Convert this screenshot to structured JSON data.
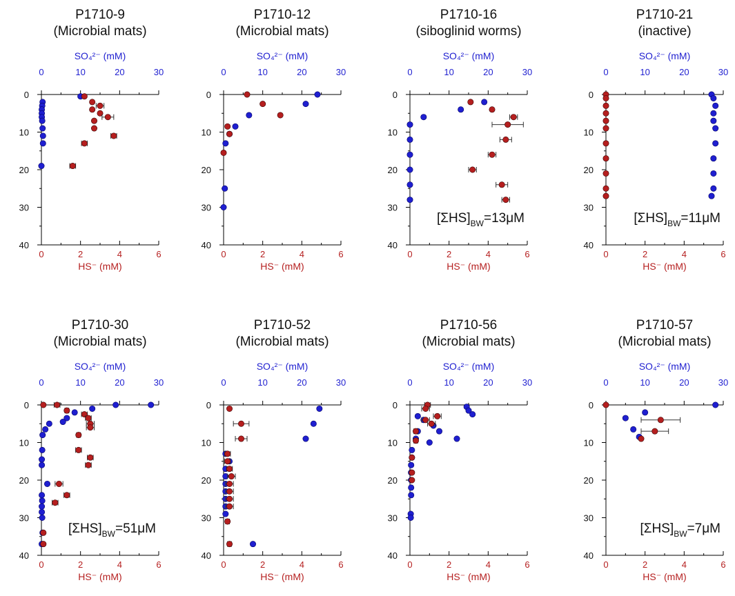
{
  "colors": {
    "sulfate": "#1f1fd0",
    "sulfide": "#b51f1f",
    "axis": "#000000",
    "text": "#111111"
  },
  "axis_labels": {
    "sulfate": "SO₄²⁻ (mM)",
    "sulfide": "HS⁻ (mM)"
  },
  "chart_data": [
    {
      "type": "scatter",
      "id": "P1710-9",
      "title": "P1710-9",
      "subtitle": "(Microbial mats)",
      "xlabel_top": "SO₄²⁻ (mM)",
      "xlabel_bottom": "HS⁻ (mM)",
      "xlim_top": [
        0,
        30
      ],
      "xticks_top": [
        0,
        10,
        20,
        30
      ],
      "xlim_bottom": [
        0,
        6
      ],
      "xticks_bottom": [
        0,
        2,
        4,
        6
      ],
      "ylim": [
        0,
        40
      ],
      "yticks": [
        0,
        10,
        20,
        30,
        40
      ],
      "y_inverted": true,
      "annotation": "",
      "sulfate": [
        [
          10,
          0.5
        ],
        [
          0.3,
          2
        ],
        [
          0.2,
          3
        ],
        [
          0.1,
          4
        ],
        [
          0.1,
          5
        ],
        [
          0.1,
          6
        ],
        [
          0.2,
          7
        ],
        [
          0.3,
          9
        ],
        [
          0.4,
          11
        ],
        [
          0.4,
          13
        ],
        [
          0,
          19
        ]
      ],
      "sulfide": [
        [
          2.2,
          0.5
        ],
        [
          2.6,
          2
        ],
        [
          3.0,
          3
        ],
        [
          2.6,
          4
        ],
        [
          3.0,
          5
        ],
        [
          3.4,
          6
        ],
        [
          2.7,
          7
        ],
        [
          2.7,
          9
        ],
        [
          3.7,
          11
        ],
        [
          2.2,
          13
        ],
        [
          1.6,
          19
        ]
      ],
      "sulfide_err": [
        0,
        0,
        0.2,
        0,
        0,
        0.3,
        0,
        0,
        0.15,
        0.15,
        0.15
      ]
    },
    {
      "type": "scatter",
      "id": "P1710-12",
      "title": "P1710-12",
      "subtitle": "(Microbial mats)",
      "xlabel_top": "SO₄²⁻ (mM)",
      "xlabel_bottom": "HS⁻ (mM)",
      "xlim_top": [
        0,
        30
      ],
      "xticks_top": [
        0,
        10,
        20,
        30
      ],
      "xlim_bottom": [
        0,
        6
      ],
      "xticks_bottom": [
        0,
        2,
        4,
        6
      ],
      "ylim": [
        0,
        40
      ],
      "yticks": [
        0,
        10,
        20,
        30,
        40
      ],
      "y_inverted": true,
      "annotation": "",
      "sulfate": [
        [
          24,
          0
        ],
        [
          21,
          2.5
        ],
        [
          6.5,
          5.5
        ],
        [
          3,
          8.5
        ],
        [
          1.5,
          10.5
        ],
        [
          0.5,
          13
        ],
        [
          0.3,
          25
        ],
        [
          0,
          30
        ]
      ],
      "sulfide": [
        [
          1.2,
          0
        ],
        [
          2.0,
          2.5
        ],
        [
          2.9,
          5.5
        ],
        [
          0.2,
          8.5
        ],
        [
          0.3,
          10.5
        ],
        [
          0,
          15.5
        ]
      ],
      "sulfide_err": [
        0,
        0,
        0,
        0,
        0,
        0
      ]
    },
    {
      "type": "scatter",
      "id": "P1710-16",
      "title": "P1710-16",
      "subtitle": "(siboglinid worms)",
      "xlabel_top": "SO₄²⁻ (mM)",
      "xlabel_bottom": "HS⁻ (mM)",
      "xlim_top": [
        0,
        30
      ],
      "xticks_top": [
        0,
        10,
        20,
        30
      ],
      "xlim_bottom": [
        0,
        6
      ],
      "xticks_bottom": [
        0,
        2,
        4,
        6
      ],
      "ylim": [
        0,
        40
      ],
      "yticks": [
        0,
        10,
        20,
        30,
        40
      ],
      "y_inverted": true,
      "annotation": "[ΣHS]_BW=13μM",
      "sulfate": [
        [
          19,
          2
        ],
        [
          13,
          4
        ],
        [
          3.5,
          6
        ],
        [
          0,
          8
        ],
        [
          0,
          12
        ],
        [
          0,
          16
        ],
        [
          0,
          20
        ],
        [
          0,
          24
        ],
        [
          0,
          28
        ]
      ],
      "sulfide": [
        [
          3.1,
          2
        ],
        [
          4.2,
          4
        ],
        [
          5.3,
          6
        ],
        [
          5.0,
          8
        ],
        [
          4.9,
          12
        ],
        [
          4.2,
          16
        ],
        [
          3.2,
          20
        ],
        [
          4.7,
          24
        ],
        [
          4.9,
          28
        ]
      ],
      "sulfide_err": [
        0,
        0,
        0.2,
        0.8,
        0.3,
        0.2,
        0.2,
        0.3,
        0.2
      ]
    },
    {
      "type": "scatter",
      "id": "P1710-21",
      "title": "P1710-21",
      "subtitle": "(inactive)",
      "xlabel_top": "SO₄²⁻ (mM)",
      "xlabel_bottom": "HS⁻ (mM)",
      "xlim_top": [
        0,
        30
      ],
      "xticks_top": [
        0,
        10,
        20,
        30
      ],
      "xlim_bottom": [
        0,
        6
      ],
      "xticks_bottom": [
        0,
        2,
        4,
        6
      ],
      "ylim": [
        0,
        40
      ],
      "yticks": [
        0,
        10,
        20,
        30,
        40
      ],
      "y_inverted": true,
      "annotation": "[ΣHS]_BW=11μM",
      "sulfate": [
        [
          27,
          0
        ],
        [
          27.5,
          1
        ],
        [
          28,
          3
        ],
        [
          27.5,
          5
        ],
        [
          27.5,
          7
        ],
        [
          28,
          9
        ],
        [
          28,
          13
        ],
        [
          27.5,
          17
        ],
        [
          27.5,
          21
        ],
        [
          27.5,
          25
        ],
        [
          27,
          27
        ]
      ],
      "sulfide": [
        [
          0,
          0
        ],
        [
          0,
          1
        ],
        [
          0,
          3
        ],
        [
          0,
          5
        ],
        [
          0,
          7
        ],
        [
          0,
          9
        ],
        [
          0,
          13
        ],
        [
          0,
          17
        ],
        [
          0,
          21
        ],
        [
          0,
          25
        ],
        [
          0,
          27
        ]
      ],
      "sulfide_err": [
        0,
        0,
        0,
        0,
        0,
        0,
        0,
        0,
        0,
        0,
        0
      ]
    },
    {
      "type": "scatter",
      "id": "P1710-30",
      "title": "P1710-30",
      "subtitle": "(Microbial mats)",
      "xlabel_top": "SO₄²⁻ (mM)",
      "xlabel_bottom": "HS⁻ (mM)",
      "xlim_top": [
        0,
        30
      ],
      "xticks_top": [
        0,
        10,
        20,
        30
      ],
      "xlim_bottom": [
        0,
        6
      ],
      "xticks_bottom": [
        0,
        2,
        4,
        6
      ],
      "ylim": [
        0,
        40
      ],
      "yticks": [
        0,
        10,
        20,
        30,
        40
      ],
      "y_inverted": true,
      "annotation": "[ΣHS]_BW=51μM",
      "sulfate": [
        [
          28,
          0
        ],
        [
          19,
          0
        ],
        [
          13,
          1
        ],
        [
          8.5,
          2
        ],
        [
          6.5,
          3.5
        ],
        [
          5.5,
          4.5
        ],
        [
          2,
          5
        ],
        [
          1,
          6.5
        ],
        [
          0.3,
          8
        ],
        [
          0.2,
          12
        ],
        [
          0.1,
          14.5
        ],
        [
          0.1,
          16
        ],
        [
          1.5,
          21
        ],
        [
          0.1,
          24
        ],
        [
          0.2,
          25.5
        ],
        [
          0.1,
          27
        ],
        [
          0.1,
          28.5
        ],
        [
          0.2,
          30
        ],
        [
          0.3,
          34
        ],
        [
          0.1,
          37
        ]
      ],
      "sulfide": [
        [
          0.1,
          0
        ],
        [
          0.8,
          0
        ],
        [
          1.3,
          1.5
        ],
        [
          2.2,
          2.5
        ],
        [
          2.4,
          3.5
        ],
        [
          2.5,
          5
        ],
        [
          2.5,
          6
        ],
        [
          1.9,
          8
        ],
        [
          1.9,
          12
        ],
        [
          2.5,
          14
        ],
        [
          2.4,
          16
        ],
        [
          0.9,
          21
        ],
        [
          1.3,
          24
        ],
        [
          0.7,
          26
        ],
        [
          0.1,
          34
        ],
        [
          0.1,
          37
        ]
      ],
      "sulfide_err": [
        0,
        0.15,
        0.1,
        0.15,
        0.15,
        0.2,
        0.2,
        0.1,
        0.15,
        0.15,
        0.15,
        0.2,
        0.15,
        0.15,
        0,
        0
      ]
    },
    {
      "type": "scatter",
      "id": "P1710-52",
      "title": "P1710-52",
      "subtitle": "(Microbial mats)",
      "xlabel_top": "SO₄²⁻ (mM)",
      "xlabel_bottom": "HS⁻ (mM)",
      "xlim_top": [
        0,
        30
      ],
      "xticks_top": [
        0,
        10,
        20,
        30
      ],
      "xlim_bottom": [
        0,
        6
      ],
      "xticks_bottom": [
        0,
        2,
        4,
        6
      ],
      "ylim": [
        0,
        40
      ],
      "yticks": [
        0,
        10,
        20,
        30,
        40
      ],
      "y_inverted": true,
      "annotation": "",
      "sulfate": [
        [
          24.5,
          1
        ],
        [
          23,
          5
        ],
        [
          21,
          9
        ],
        [
          0.5,
          13
        ],
        [
          1.5,
          15
        ],
        [
          0.5,
          17
        ],
        [
          0.5,
          19
        ],
        [
          0.5,
          21
        ],
        [
          0.5,
          23
        ],
        [
          0.5,
          25
        ],
        [
          0.5,
          27
        ],
        [
          0.5,
          29
        ],
        [
          7.5,
          37
        ]
      ],
      "sulfide": [
        [
          0.3,
          1
        ],
        [
          0.9,
          5
        ],
        [
          0.9,
          9
        ],
        [
          0.2,
          13
        ],
        [
          0.2,
          15
        ],
        [
          0.3,
          17
        ],
        [
          0.4,
          19
        ],
        [
          0.3,
          21
        ],
        [
          0.3,
          23
        ],
        [
          0.3,
          25
        ],
        [
          0.3,
          27
        ],
        [
          0.2,
          31
        ],
        [
          0.3,
          37
        ]
      ],
      "sulfide_err": [
        0,
        0.4,
        0.3,
        0.15,
        0.15,
        0.15,
        0.2,
        0.2,
        0.2,
        0.2,
        0.2,
        0.1,
        0.1
      ]
    },
    {
      "type": "scatter",
      "id": "P1710-56",
      "title": "P1710-56",
      "subtitle": "(Microbial mats)",
      "xlabel_top": "SO₄²⁻ (mM)",
      "xlabel_bottom": "HS⁻ (mM)",
      "xlim_top": [
        0,
        30
      ],
      "xticks_top": [
        0,
        10,
        20,
        30
      ],
      "xlim_bottom": [
        0,
        6
      ],
      "xticks_bottom": [
        0,
        2,
        4,
        6
      ],
      "ylim": [
        0,
        40
      ],
      "yticks": [
        0,
        10,
        20,
        30,
        40
      ],
      "y_inverted": true,
      "annotation": "",
      "sulfate": [
        [
          14.5,
          0.5
        ],
        [
          15,
          1.5
        ],
        [
          16,
          2.5
        ],
        [
          2,
          3
        ],
        [
          3.5,
          4
        ],
        [
          6,
          5.5
        ],
        [
          7.5,
          7
        ],
        [
          5,
          10
        ],
        [
          12,
          9
        ],
        [
          2,
          7
        ],
        [
          1.5,
          9
        ],
        [
          0.5,
          12
        ],
        [
          0.5,
          14
        ],
        [
          0.3,
          16
        ],
        [
          0.3,
          18
        ],
        [
          0.3,
          20
        ],
        [
          0.3,
          22
        ],
        [
          0.3,
          24
        ],
        [
          0.2,
          29
        ],
        [
          0.2,
          30
        ]
      ],
      "sulfide": [
        [
          0.9,
          0
        ],
        [
          0.8,
          1
        ],
        [
          1.4,
          3
        ],
        [
          0.8,
          4
        ],
        [
          1.1,
          5
        ],
        [
          0.3,
          7
        ],
        [
          0.3,
          9.5
        ],
        [
          0.1,
          14
        ],
        [
          0.1,
          18
        ],
        [
          0.1,
          20
        ]
      ],
      "sulfide_err": [
        0.15,
        0.2,
        0.2,
        0.2,
        0.2,
        0.1,
        0.1,
        0,
        0,
        0
      ]
    },
    {
      "type": "scatter",
      "id": "P1710-57",
      "title": "P1710-57",
      "subtitle": "(Microbial mats)",
      "xlabel_top": "SO₄²⁻ (mM)",
      "xlabel_bottom": "HS⁻ (mM)",
      "xlim_top": [
        0,
        30
      ],
      "xticks_top": [
        0,
        10,
        20,
        30
      ],
      "xlim_bottom": [
        0,
        6
      ],
      "xticks_bottom": [
        0,
        2,
        4,
        6
      ],
      "ylim": [
        0,
        40
      ],
      "yticks": [
        0,
        10,
        20,
        30,
        40
      ],
      "y_inverted": true,
      "annotation": "[ΣHS]_BW=7μM",
      "sulfate": [
        [
          28,
          0
        ],
        [
          10,
          2
        ],
        [
          5,
          3.5
        ],
        [
          7,
          6.5
        ],
        [
          8.5,
          8.5
        ]
      ],
      "sulfide": [
        [
          0,
          0
        ],
        [
          2.8,
          4
        ],
        [
          2.5,
          7
        ],
        [
          1.8,
          9
        ]
      ],
      "sulfide_err": [
        0,
        1.0,
        0.7,
        0
      ]
    }
  ]
}
